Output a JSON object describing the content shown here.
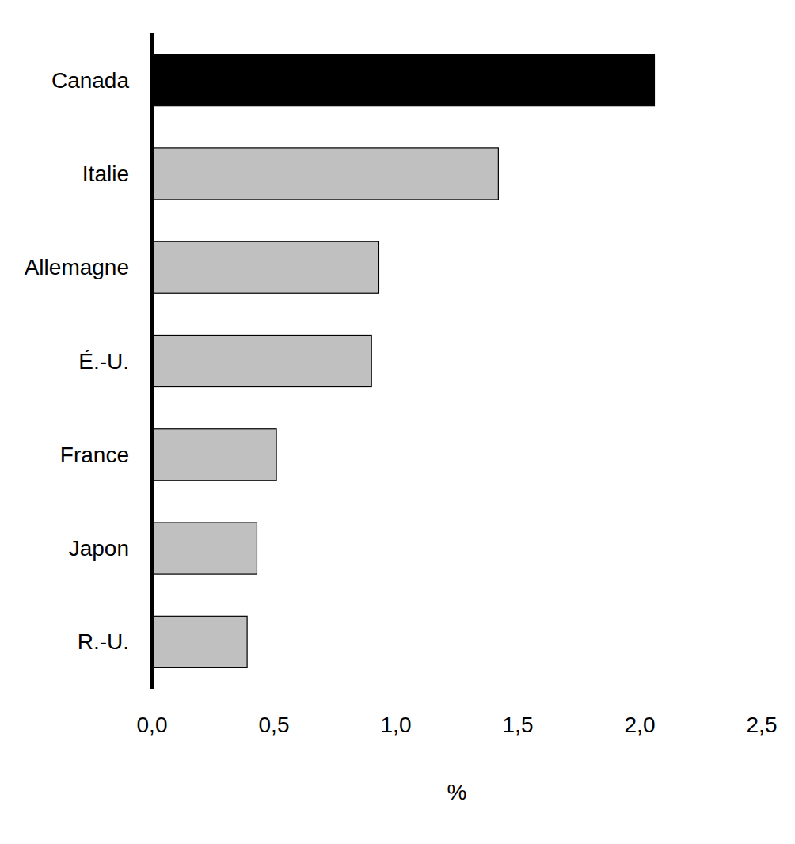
{
  "chart_data": {
    "type": "bar",
    "orientation": "horizontal",
    "categories": [
      "Canada",
      "Italie",
      "Allemagne",
      "É.-U.",
      "France",
      "Japon",
      "R.-U."
    ],
    "values": [
      2.06,
      1.42,
      0.93,
      0.9,
      0.51,
      0.43,
      0.39
    ],
    "colors": [
      "#000000",
      "#c0c0c0",
      "#c0c0c0",
      "#c0c0c0",
      "#c0c0c0",
      "#c0c0c0",
      "#c0c0c0"
    ],
    "x_label": "%",
    "xlim": [
      0,
      2.5
    ],
    "xticks": [
      {
        "value": 0,
        "label": "0,0"
      },
      {
        "value": 0.5,
        "label": "0,5"
      },
      {
        "value": 1,
        "label": "1,0"
      },
      {
        "value": 1.5,
        "label": "1,5"
      },
      {
        "value": 2,
        "label": "2,0"
      },
      {
        "value": 2.5,
        "label": "2,5"
      }
    ],
    "grid": false
  }
}
